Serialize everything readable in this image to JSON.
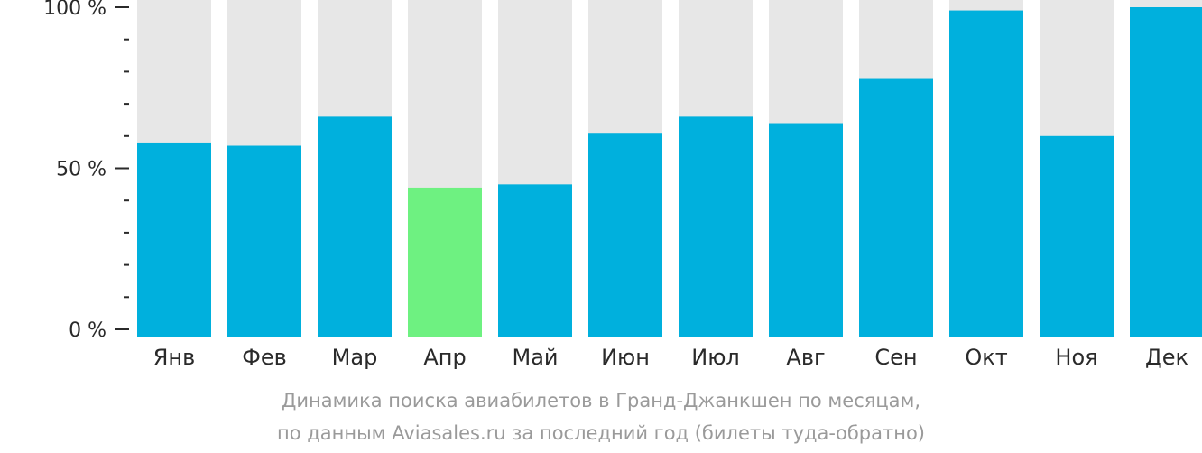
{
  "chart_data": {
    "type": "bar",
    "categories": [
      "Янв",
      "Фев",
      "Мар",
      "Апр",
      "Май",
      "Июн",
      "Июл",
      "Авг",
      "Сен",
      "Окт",
      "Ноя",
      "Дек"
    ],
    "values": [
      58,
      57,
      66,
      44,
      45,
      61,
      66,
      64,
      78,
      99,
      60,
      100
    ],
    "highlight_index": 3,
    "ylim": [
      0,
      100
    ],
    "yticks": [
      {
        "value": 0,
        "label": "0 %"
      },
      {
        "value": 50,
        "label": "50 %"
      },
      {
        "value": 100,
        "label": "100 %"
      }
    ],
    "minor_tick_step": 10,
    "colors": {
      "bar": "#00b0dd",
      "highlight": "#6ef181",
      "track": "#e7e7e7",
      "axis": "#2a2a2a"
    }
  },
  "caption": {
    "line1": "Динамика поиска авиабилетов в Гранд-Джанкшен по месяцам,",
    "line2": "по данным Aviasales.ru за последний год (билеты туда-обратно)"
  }
}
